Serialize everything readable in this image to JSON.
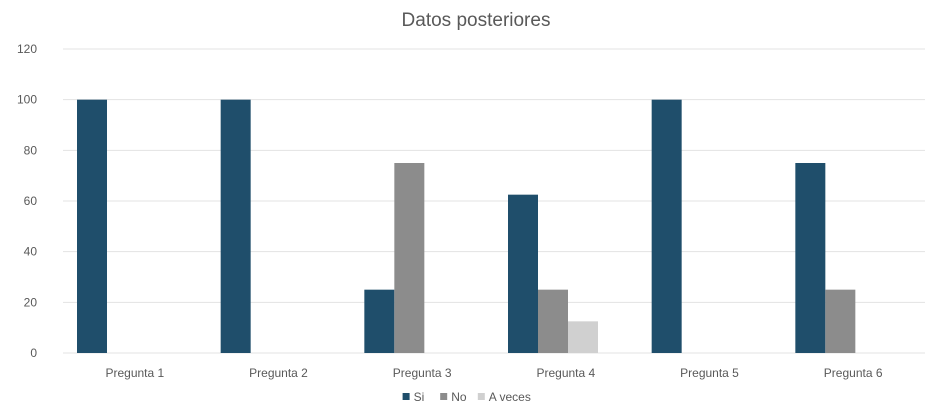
{
  "chart_data": {
    "type": "bar",
    "title": "Datos posteriores",
    "xlabel": "",
    "ylabel": "",
    "categories": [
      "Pregunta 1",
      "Pregunta 2",
      "Pregunta 3",
      "Pregunta 4",
      "Pregunta 5",
      "Pregunta 6"
    ],
    "series": [
      {
        "name": "Si",
        "color": "#1f4e6b",
        "values": [
          100,
          100,
          25,
          62.5,
          100,
          75
        ]
      },
      {
        "name": "No",
        "color": "#8c8c8c",
        "values": [
          0,
          0,
          75,
          25,
          0,
          25
        ]
      },
      {
        "name": "A veces",
        "color": "#d0d0d0",
        "values": [
          0,
          0,
          0,
          12.5,
          0,
          0
        ]
      }
    ],
    "ylim": [
      0,
      120
    ],
    "yticks": [
      0,
      20,
      40,
      60,
      80,
      100,
      120
    ],
    "grid": true,
    "legend_position": "bottom"
  }
}
